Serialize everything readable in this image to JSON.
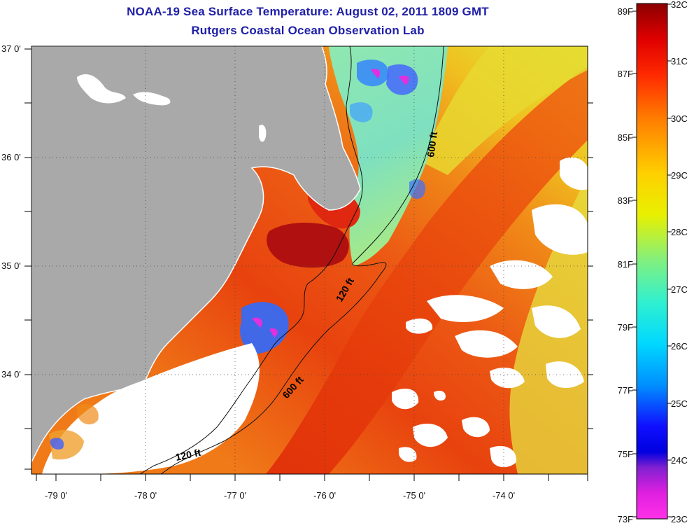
{
  "header": {
    "title": "NOAA-19 Sea Surface Temperature:  August 02, 2011 1809 GMT",
    "subtitle": "Rutgers Coastal Ocean Observation Lab"
  },
  "map": {
    "longitude_labels": [
      "-79 0'",
      "-78 0'",
      "-77 0'",
      "-76 0'",
      "-75 0'",
      "-74 0'"
    ],
    "latitude_labels": [
      "37 0'",
      "36 0'",
      "35 0'",
      "34 0'"
    ],
    "contour_labels": [
      "600 ft",
      "120 ft",
      "600 ft",
      "120 ft"
    ],
    "colors": {
      "land": "#a9a9a9",
      "cloud_no_data": "#ffffff"
    }
  },
  "colorbar": {
    "fahrenheit_labels": [
      "89F",
      "87F",
      "85F",
      "83F",
      "81F",
      "79F",
      "77F",
      "75F",
      "73F"
    ],
    "celsius_labels": [
      "32C",
      "31C",
      "30C",
      "29C",
      "28C",
      "27C",
      "26C",
      "25C",
      "24C",
      "23C"
    ]
  }
}
